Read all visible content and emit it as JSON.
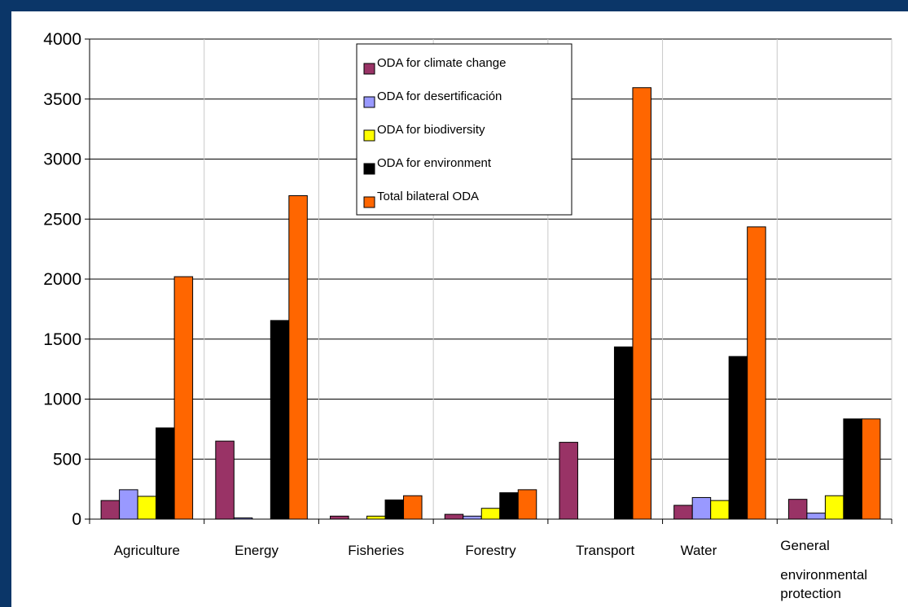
{
  "chart_data": {
    "type": "bar",
    "title": "",
    "xlabel": "",
    "ylabel": "",
    "ylim": [
      0,
      4000
    ],
    "yticks": [
      0,
      500,
      1000,
      1500,
      2000,
      2500,
      3000,
      3500,
      4000
    ],
    "grid": true,
    "legend_position": "top-center",
    "categories": [
      "Agriculture",
      "Energy",
      "Fisheries",
      "Forestry",
      "Transport",
      "Water",
      "General environmental protection"
    ],
    "category_label_lines": [
      [
        "Agriculture"
      ],
      [
        "Energy"
      ],
      [
        "Fisheries"
      ],
      [
        "Forestry"
      ],
      [
        "Transport"
      ],
      [
        "Water"
      ],
      [
        "General",
        "environmental",
        "protection"
      ]
    ],
    "series": [
      {
        "name": "ODA for climate change",
        "color": "#993366",
        "values": [
          155,
          650,
          25,
          40,
          640,
          115,
          165
        ]
      },
      {
        "name": "ODA for desertificación",
        "color": "#9999ff",
        "values": [
          245,
          10,
          0,
          25,
          0,
          180,
          50
        ]
      },
      {
        "name": "ODA for biodiversity",
        "color": "#ffff00",
        "values": [
          190,
          0,
          25,
          90,
          0,
          155,
          195
        ]
      },
      {
        "name": "ODA for environment",
        "color": "#000000",
        "values": [
          760,
          1655,
          160,
          220,
          1435,
          1355,
          835
        ]
      },
      {
        "name": "Total bilateral ODA",
        "color": "#ff6600",
        "values": [
          2020,
          2695,
          195,
          245,
          3595,
          2435,
          835
        ]
      }
    ]
  }
}
